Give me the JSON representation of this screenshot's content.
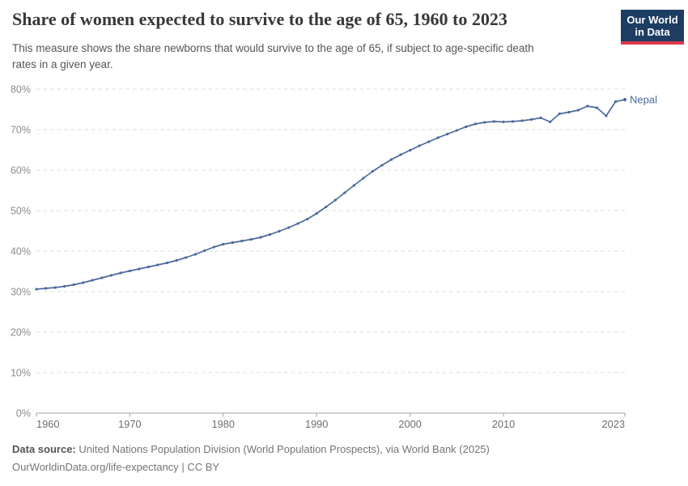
{
  "header": {
    "title": "Share of women expected to survive to the age of 65, 1960 to 2023",
    "subtitle_lines": [
      "This measure shows the share newborns that would survive to the age of 65, if subject to age-specific death",
      "rates in a given year."
    ],
    "logo": {
      "line1": "Our World",
      "line2": "in Data",
      "bg_color": "#1d3d63",
      "accent_color": "#d93a4a"
    }
  },
  "chart_data": {
    "type": "line",
    "title": "Share of women expected to survive to the age of 65, 1960 to 2023",
    "xlabel": "",
    "ylabel": "",
    "xlim": [
      1960,
      2023
    ],
    "ylim": [
      0,
      80
    ],
    "x_ticks": [
      1960,
      1970,
      1980,
      1990,
      2000,
      2010,
      2023
    ],
    "y_ticks": [
      0,
      10,
      20,
      30,
      40,
      50,
      60,
      70,
      80
    ],
    "y_tick_suffix": "%",
    "grid": "horizontal-dashed",
    "legend_position": "end-of-line-label",
    "series": [
      {
        "name": "Nepal",
        "color": "#4c6a9c",
        "x": [
          1960,
          1961,
          1962,
          1963,
          1964,
          1965,
          1966,
          1967,
          1968,
          1969,
          1970,
          1971,
          1972,
          1973,
          1974,
          1975,
          1976,
          1977,
          1978,
          1979,
          1980,
          1981,
          1982,
          1983,
          1984,
          1985,
          1986,
          1987,
          1988,
          1989,
          1990,
          1991,
          1992,
          1993,
          1994,
          1995,
          1996,
          1997,
          1998,
          1999,
          2000,
          2001,
          2002,
          2003,
          2004,
          2005,
          2006,
          2007,
          2008,
          2009,
          2010,
          2011,
          2012,
          2013,
          2014,
          2015,
          2016,
          2017,
          2018,
          2019,
          2020,
          2021,
          2022,
          2023
        ],
        "values": [
          30.6,
          30.8,
          31.0,
          31.3,
          31.7,
          32.2,
          32.8,
          33.4,
          34.0,
          34.6,
          35.1,
          35.6,
          36.1,
          36.6,
          37.1,
          37.7,
          38.4,
          39.2,
          40.1,
          41.0,
          41.7,
          42.1,
          42.5,
          42.9,
          43.4,
          44.1,
          44.9,
          45.8,
          46.8,
          47.9,
          49.3,
          50.9,
          52.6,
          54.4,
          56.2,
          58.0,
          59.7,
          61.2,
          62.6,
          63.8,
          64.9,
          66.0,
          67.0,
          68.0,
          68.9,
          69.8,
          70.7,
          71.4,
          71.8,
          72.0,
          71.9,
          72.0,
          72.2,
          72.5,
          72.9,
          71.9,
          73.9,
          74.3,
          74.8,
          75.8,
          75.4,
          73.4,
          76.9,
          77.4
        ]
      }
    ]
  },
  "footer": {
    "label": "Data source:",
    "source": "United Nations Population Division (World Population Prospects), via World Bank (2025)",
    "link": "OurWorldinData.org/life-expectancy",
    "separator": "|",
    "license": "CC BY"
  }
}
